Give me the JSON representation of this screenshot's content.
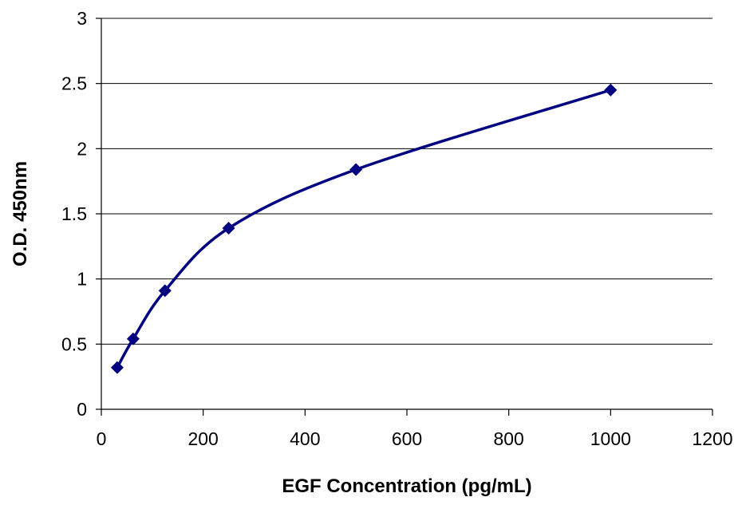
{
  "chart_data": {
    "type": "scatter",
    "title": "",
    "xlabel": "EGF Concentration (pg/mL)",
    "ylabel": "O.D. 450nm",
    "xlim": [
      0,
      1200
    ],
    "ylim": [
      0,
      3
    ],
    "x_ticks": [
      "0",
      "200",
      "400",
      "600",
      "800",
      "1000",
      "1200"
    ],
    "y_ticks": [
      "0",
      "0.5",
      "1",
      "1.5",
      "2",
      "2.5",
      "3"
    ],
    "grid": "horizontal",
    "legend": "none",
    "smoothed_line": true,
    "marker": "diamond",
    "color": "#000080",
    "series": [
      {
        "x": [
          31.25,
          62.5,
          125,
          250,
          500,
          1000
        ],
        "y": [
          0.32,
          0.54,
          0.91,
          1.39,
          1.84,
          2.45
        ]
      }
    ]
  }
}
